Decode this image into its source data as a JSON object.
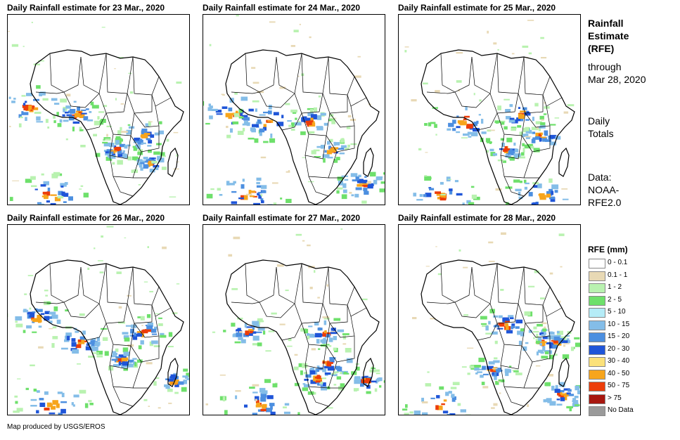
{
  "panels": [
    {
      "title": "Daily Rainfall estimate for 23 Mar., 2020"
    },
    {
      "title": "Daily Rainfall estimate for 24 Mar., 2020"
    },
    {
      "title": "Daily Rainfall estimate for 25 Mar., 2020"
    },
    {
      "title": "Daily Rainfall estimate for 26 Mar., 2020"
    },
    {
      "title": "Daily Rainfall estimate for 27 Mar., 2020"
    },
    {
      "title": "Daily Rainfall estimate for 28 Mar., 2020"
    }
  ],
  "side": {
    "heading1": "Rainfall",
    "heading2": "Estimate",
    "heading3": "(RFE)",
    "through1": "through",
    "through2": "Mar 28, 2020",
    "totals1": "Daily",
    "totals2": "Totals",
    "data1": "Data:",
    "data2": "NOAA-",
    "data3": "RFE2.0"
  },
  "legend": {
    "title": "RFE (mm)",
    "items": [
      {
        "label": "0 - 0.1",
        "color": "#ffffff"
      },
      {
        "label": "0.1 - 1",
        "color": "#e8d9b5"
      },
      {
        "label": "1 - 2",
        "color": "#b9f2b0"
      },
      {
        "label": "2 - 5",
        "color": "#6ee06b"
      },
      {
        "label": "5 - 10",
        "color": "#b5ecf7"
      },
      {
        "label": "10 - 15",
        "color": "#84bde8"
      },
      {
        "label": "15 - 20",
        "color": "#4c8fe0"
      },
      {
        "label": "20 - 30",
        "color": "#1f55d8"
      },
      {
        "label": "30 - 40",
        "color": "#fbe17a"
      },
      {
        "label": "40 - 50",
        "color": "#f7a51c"
      },
      {
        "label": "50 - 75",
        "color": "#ec3d0a"
      },
      {
        "label": "> 75",
        "color": "#a7170f"
      },
      {
        "label": "No Data",
        "color": "#9a9a9a"
      }
    ]
  },
  "credit": "Map produced by USGS/EROS"
}
